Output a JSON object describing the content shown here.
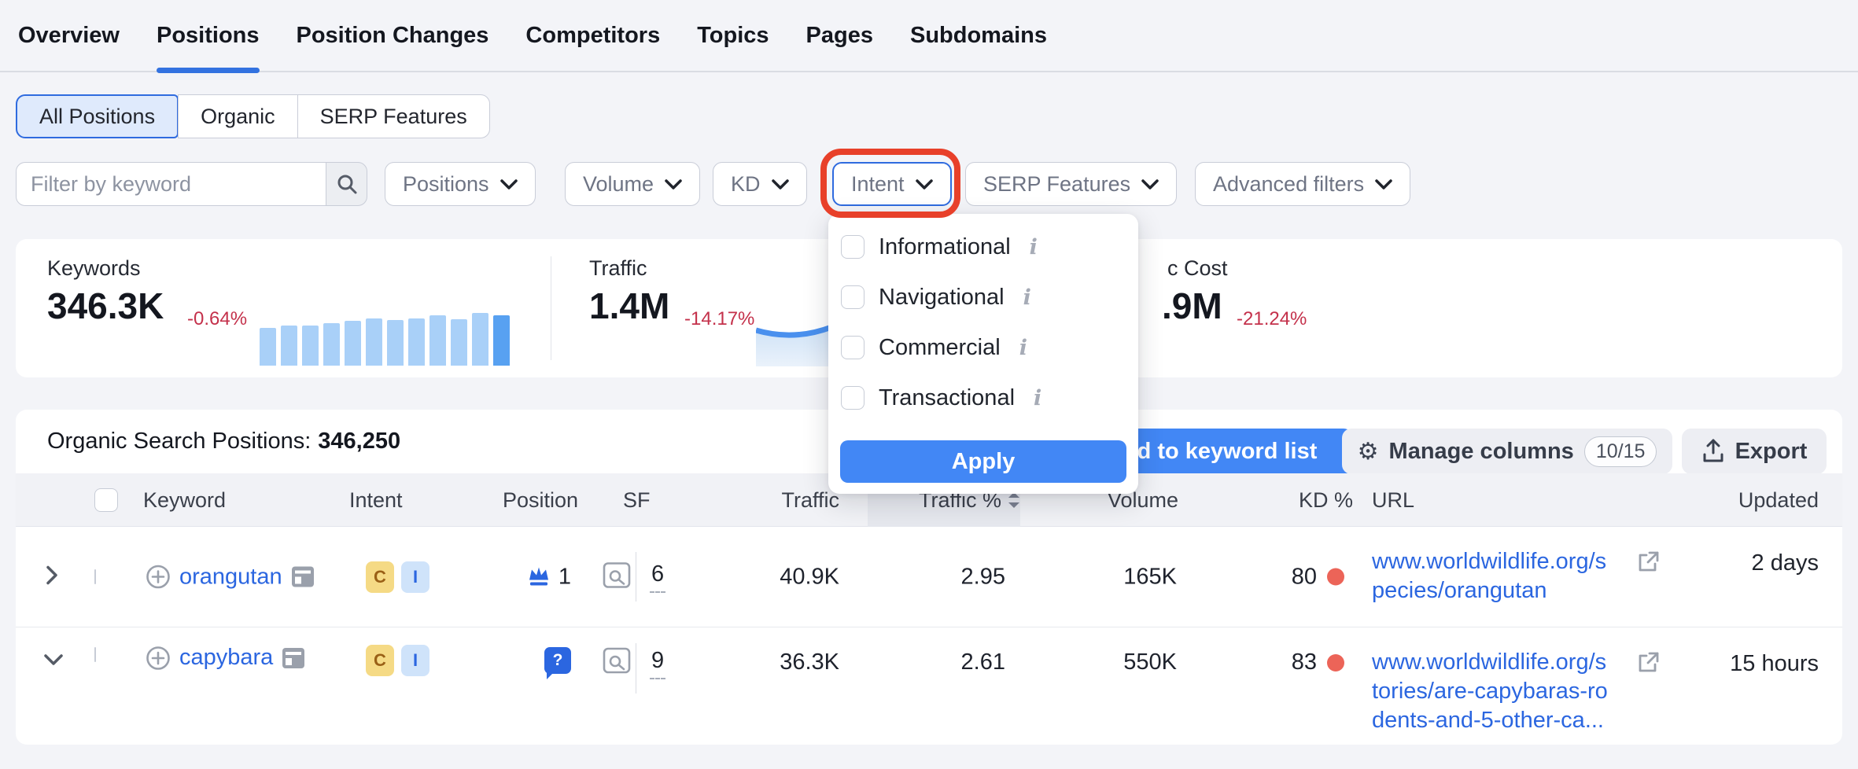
{
  "nav": {
    "tabs": [
      {
        "label": "Overview"
      },
      {
        "label": "Positions"
      },
      {
        "label": "Position Changes"
      },
      {
        "label": "Competitors"
      },
      {
        "label": "Topics"
      },
      {
        "label": "Pages"
      },
      {
        "label": "Subdomains"
      }
    ],
    "active_tab": "Positions"
  },
  "segmented": {
    "options": [
      {
        "label": "All Positions",
        "active": true
      },
      {
        "label": "Organic",
        "active": false
      },
      {
        "label": "SERP Features",
        "active": false
      }
    ]
  },
  "filters": {
    "keyword_placeholder": "Filter by keyword",
    "positions_label": "Positions",
    "volume_label": "Volume",
    "kd_label": "KD",
    "intent_label": "Intent",
    "serp_features_label": "SERP Features",
    "advanced_label": "Advanced filters",
    "highlighted_filter": "Intent"
  },
  "intent_dropdown": {
    "options": [
      {
        "label": "Informational",
        "checked": false
      },
      {
        "label": "Navigational",
        "checked": false
      },
      {
        "label": "Commercial",
        "checked": false
      },
      {
        "label": "Transactional",
        "checked": false
      }
    ],
    "apply_label": "Apply"
  },
  "stats": {
    "keywords": {
      "label": "Keywords",
      "value": "346.3K",
      "change": "-0.64%",
      "bars": [
        72,
        76,
        76,
        80,
        85,
        90,
        87,
        90,
        95,
        88,
        100,
        96
      ]
    },
    "traffic": {
      "label": "Traffic",
      "value": "1.4M",
      "change": "-14.17%"
    },
    "traffic_cost": {
      "label_visible": "c Cost",
      "value_visible": ".9M",
      "change": "-21.24%"
    }
  },
  "table": {
    "title": "Organic Search Positions:",
    "count": "346,250",
    "actions": {
      "add_to_list_visible": "d to keyword list",
      "manage_columns": "Manage columns",
      "columns_count": "10/15",
      "export": "Export"
    },
    "columns": [
      "Keyword",
      "Intent",
      "Position",
      "SF",
      "Traffic",
      "Traffic %",
      "Volume",
      "KD %",
      "URL",
      "Updated"
    ],
    "sorted_column": "Traffic %",
    "rows": [
      {
        "keyword": "orangutan",
        "intents": [
          "C",
          "I"
        ],
        "position": "1",
        "position_icon": "crown",
        "sf": "6",
        "traffic": "40.9K",
        "traffic_pct": "2.95",
        "volume": "165K",
        "kd": "80",
        "url_line1": "www.worldwildlife.org/s",
        "url_line2": "pecies/orangutan",
        "url_line3": "",
        "updated": "2 days",
        "expanded": false
      },
      {
        "keyword": "capybara",
        "intents": [
          "C",
          "I"
        ],
        "position": "",
        "position_icon": "question-bubble",
        "sf": "9",
        "traffic": "36.3K",
        "traffic_pct": "2.61",
        "volume": "550K",
        "kd": "83",
        "url_line1": "www.worldwildlife.org/s",
        "url_line2": "tories/are-capybaras-ro",
        "url_line3": "dents-and-5-other-ca...",
        "updated": "15 hours",
        "expanded": true
      }
    ]
  },
  "colors": {
    "brand_blue": "#2b66e0",
    "button_blue": "#4287f5",
    "annotation_red": "#e8402a",
    "negative_red": "#c4314b",
    "kd_dot_red": "#ec6458",
    "spark_light": "#a9d0f8",
    "spark_dark": "#58a1f1",
    "intent_c_bg": "#f5da85",
    "intent_i_bg": "#cfe3fa"
  }
}
